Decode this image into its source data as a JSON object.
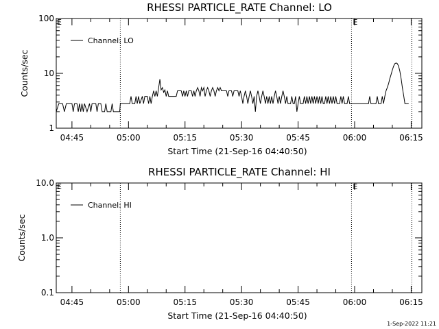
{
  "footer_stamp": "1-Sep-2022 11:21",
  "chart_data": [
    {
      "type": "line",
      "title": "RHESSI PARTICLE_RATE Channel: LO",
      "xlabel": "Start Time (21-Sep-16 04:40:50)",
      "ylabel": "Counts/sec",
      "yscale": "log",
      "ylim": [
        1,
        100
      ],
      "yticks": [
        {
          "v": 1,
          "label": "1"
        },
        {
          "v": 10,
          "label": "10"
        },
        {
          "v": 100,
          "label": "100"
        }
      ],
      "xlim": [
        "04:40:50",
        "06:17:50"
      ],
      "xticks": [
        "04:45",
        "05:00",
        "05:15",
        "05:30",
        "05:45",
        "06:00",
        "06:15"
      ],
      "legend": {
        "entries": [
          "Channel: LO"
        ],
        "placement": "top-left"
      },
      "event_lines": [
        {
          "time": "04:57:50",
          "label": ""
        },
        {
          "time": "05:59:10",
          "label": "E"
        },
        {
          "time": "06:15:10",
          "label": ""
        }
      ],
      "start_marker": "E",
      "grid": false,
      "series": [
        {
          "name": "Channel: LO",
          "color": "#000000",
          "points": [
            [
              "04:40:50",
              2.0
            ],
            [
              "04:41:30",
              2.8
            ],
            [
              "04:42:30",
              2.8
            ],
            [
              "04:43:00",
              2.0
            ],
            [
              "04:43:30",
              2.8
            ],
            [
              "04:45:00",
              2.8
            ],
            [
              "04:45:20",
              2.0
            ],
            [
              "04:45:40",
              2.8
            ],
            [
              "04:46:20",
              2.8
            ],
            [
              "04:46:40",
              2.0
            ],
            [
              "04:47:00",
              2.8
            ],
            [
              "04:47:20",
              2.0
            ],
            [
              "04:47:40",
              2.8
            ],
            [
              "04:48:00",
              2.0
            ],
            [
              "04:48:20",
              2.8
            ],
            [
              "04:49:00",
              2.0
            ],
            [
              "04:49:40",
              2.8
            ],
            [
              "04:50:00",
              2.0
            ],
            [
              "04:50:20",
              2.8
            ],
            [
              "04:51:20",
              2.8
            ],
            [
              "04:51:40",
              2.0
            ],
            [
              "04:52:00",
              2.8
            ],
            [
              "04:52:40",
              2.8
            ],
            [
              "04:53:00",
              2.0
            ],
            [
              "04:53:40",
              2.0
            ],
            [
              "04:54:00",
              2.8
            ],
            [
              "04:54:20",
              2.0
            ],
            [
              "04:55:20",
              2.0
            ],
            [
              "04:55:40",
              2.8
            ],
            [
              "04:56:00",
              2.0
            ],
            [
              "04:57:40",
              2.0
            ],
            [
              "04:57:50",
              2.8
            ],
            [
              "05:00:20",
              2.8
            ],
            [
              "05:00:40",
              3.8
            ],
            [
              "05:01:00",
              2.8
            ],
            [
              "05:01:40",
              2.8
            ],
            [
              "05:02:00",
              3.8
            ],
            [
              "05:02:20",
              2.8
            ],
            [
              "05:02:40",
              3.8
            ],
            [
              "05:03:00",
              2.8
            ],
            [
              "05:03:40",
              3.8
            ],
            [
              "05:04:00",
              2.8
            ],
            [
              "05:04:20",
              3.8
            ],
            [
              "05:05:00",
              3.8
            ],
            [
              "05:05:20",
              2.8
            ],
            [
              "05:05:40",
              3.8
            ],
            [
              "05:06:00",
              2.8
            ],
            [
              "05:06:20",
              3.8
            ],
            [
              "05:06:40",
              4.8
            ],
            [
              "05:07:00",
              3.8
            ],
            [
              "05:07:20",
              4.8
            ],
            [
              "05:07:40",
              3.8
            ],
            [
              "05:08:00",
              5.5
            ],
            [
              "05:08:20",
              7.8
            ],
            [
              "05:08:40",
              5.0
            ],
            [
              "05:09:00",
              5.5
            ],
            [
              "05:09:20",
              4.5
            ],
            [
              "05:09:40",
              5.0
            ],
            [
              "05:10:00",
              3.8
            ],
            [
              "05:10:20",
              4.8
            ],
            [
              "05:10:40",
              3.8
            ],
            [
              "05:12:40",
              3.8
            ],
            [
              "05:13:00",
              4.8
            ],
            [
              "05:14:00",
              4.8
            ],
            [
              "05:14:20",
              3.8
            ],
            [
              "05:14:40",
              4.8
            ],
            [
              "05:15:00",
              3.8
            ],
            [
              "05:15:20",
              4.8
            ],
            [
              "05:15:40",
              3.8
            ],
            [
              "05:16:00",
              4.8
            ],
            [
              "05:16:40",
              4.8
            ],
            [
              "05:17:00",
              3.8
            ],
            [
              "05:17:20",
              4.8
            ],
            [
              "05:17:40",
              3.8
            ],
            [
              "05:18:00",
              4.8
            ],
            [
              "05:18:20",
              5.5
            ],
            [
              "05:18:40",
              4.8
            ],
            [
              "05:19:00",
              3.8
            ],
            [
              "05:19:20",
              5.5
            ],
            [
              "05:19:40",
              4.8
            ],
            [
              "05:20:00",
              5.5
            ],
            [
              "05:20:20",
              3.8
            ],
            [
              "05:20:40",
              4.8
            ],
            [
              "05:21:00",
              5.5
            ],
            [
              "05:21:20",
              4.8
            ],
            [
              "05:21:40",
              3.8
            ],
            [
              "05:22:00",
              4.8
            ],
            [
              "05:22:20",
              5.5
            ],
            [
              "05:22:40",
              4.8
            ],
            [
              "05:23:00",
              3.8
            ],
            [
              "05:23:20",
              4.8
            ],
            [
              "05:23:40",
              5.5
            ],
            [
              "05:24:00",
              4.8
            ],
            [
              "05:24:20",
              5.5
            ],
            [
              "05:24:40",
              4.8
            ],
            [
              "05:26:00",
              4.8
            ],
            [
              "05:26:20",
              3.8
            ],
            [
              "05:26:40",
              4.8
            ],
            [
              "05:27:20",
              4.8
            ],
            [
              "05:27:40",
              3.8
            ],
            [
              "05:28:00",
              4.8
            ],
            [
              "05:29:00",
              4.8
            ],
            [
              "05:29:20",
              3.8
            ],
            [
              "05:29:40",
              4.8
            ],
            [
              "05:30:00",
              3.8
            ],
            [
              "05:30:20",
              2.8
            ],
            [
              "05:30:40",
              3.8
            ],
            [
              "05:31:00",
              4.8
            ],
            [
              "05:31:20",
              3.8
            ],
            [
              "05:31:40",
              2.8
            ],
            [
              "05:32:00",
              3.8
            ],
            [
              "05:32:20",
              4.8
            ],
            [
              "05:32:40",
              3.8
            ],
            [
              "05:33:00",
              2.8
            ],
            [
              "05:33:20",
              3.8
            ],
            [
              "05:33:40",
              2.0
            ],
            [
              "05:34:00",
              3.8
            ],
            [
              "05:34:20",
              4.8
            ],
            [
              "05:34:40",
              3.8
            ],
            [
              "05:35:00",
              2.8
            ],
            [
              "05:35:20",
              3.8
            ],
            [
              "05:35:40",
              4.8
            ],
            [
              "05:36:00",
              3.8
            ],
            [
              "05:36:20",
              2.8
            ],
            [
              "05:36:40",
              3.8
            ],
            [
              "05:37:00",
              2.8
            ],
            [
              "05:37:20",
              3.8
            ],
            [
              "05:37:40",
              2.8
            ],
            [
              "05:38:00",
              3.8
            ],
            [
              "05:38:20",
              2.8
            ],
            [
              "05:38:40",
              3.8
            ],
            [
              "05:39:00",
              4.8
            ],
            [
              "05:39:20",
              3.8
            ],
            [
              "05:39:40",
              2.8
            ],
            [
              "05:40:00",
              3.8
            ],
            [
              "05:40:20",
              2.8
            ],
            [
              "05:40:40",
              3.8
            ],
            [
              "05:41:00",
              4.8
            ],
            [
              "05:41:20",
              3.8
            ],
            [
              "05:41:40",
              2.8
            ],
            [
              "05:42:00",
              3.8
            ],
            [
              "05:42:20",
              2.8
            ],
            [
              "05:43:00",
              2.8
            ],
            [
              "05:43:20",
              3.8
            ],
            [
              "05:43:40",
              2.8
            ],
            [
              "05:44:00",
              2.8
            ],
            [
              "05:44:20",
              3.8
            ],
            [
              "05:44:40",
              2.0
            ],
            [
              "05:45:00",
              2.8
            ],
            [
              "05:45:20",
              3.8
            ],
            [
              "05:45:40",
              2.8
            ],
            [
              "05:46:20",
              2.8
            ],
            [
              "05:46:40",
              3.8
            ],
            [
              "05:47:00",
              2.8
            ],
            [
              "05:47:20",
              3.8
            ],
            [
              "05:47:40",
              2.8
            ],
            [
              "05:48:00",
              3.8
            ],
            [
              "05:48:20",
              2.8
            ],
            [
              "05:48:40",
              3.8
            ],
            [
              "05:49:00",
              2.8
            ],
            [
              "05:49:20",
              3.8
            ],
            [
              "05:49:40",
              2.8
            ],
            [
              "05:50:00",
              3.8
            ],
            [
              "05:50:20",
              2.8
            ],
            [
              "05:50:40",
              3.8
            ],
            [
              "05:51:00",
              2.8
            ],
            [
              "05:51:20",
              3.8
            ],
            [
              "05:51:40",
              2.8
            ],
            [
              "05:52:00",
              2.8
            ],
            [
              "05:52:20",
              3.8
            ],
            [
              "05:52:40",
              2.8
            ],
            [
              "05:53:00",
              3.8
            ],
            [
              "05:53:20",
              2.8
            ],
            [
              "05:53:40",
              3.8
            ],
            [
              "05:54:00",
              2.8
            ],
            [
              "05:54:20",
              3.8
            ],
            [
              "05:54:40",
              2.8
            ],
            [
              "05:55:00",
              3.8
            ],
            [
              "05:55:20",
              2.8
            ],
            [
              "05:56:00",
              2.8
            ],
            [
              "05:56:20",
              3.8
            ],
            [
              "05:56:40",
              2.8
            ],
            [
              "05:57:00",
              3.8
            ],
            [
              "05:57:20",
              2.8
            ],
            [
              "05:58:00",
              2.8
            ],
            [
              "05:58:20",
              3.8
            ],
            [
              "05:58:40",
              2.8
            ],
            [
              "06:03:40",
              2.8
            ],
            [
              "06:04:00",
              3.8
            ],
            [
              "06:04:20",
              2.8
            ],
            [
              "06:05:40",
              2.8
            ],
            [
              "06:06:00",
              3.8
            ],
            [
              "06:06:20",
              2.8
            ],
            [
              "06:07:00",
              2.8
            ],
            [
              "06:07:20",
              3.8
            ],
            [
              "06:07:40",
              2.8
            ],
            [
              "06:08:00",
              3.8
            ],
            [
              "06:08:20",
              4.8
            ],
            [
              "06:08:40",
              5.5
            ],
            [
              "06:09:00",
              6.5
            ],
            [
              "06:09:20",
              8.0
            ],
            [
              "06:09:40",
              9.5
            ],
            [
              "06:10:00",
              11.5
            ],
            [
              "06:10:20",
              13.5
            ],
            [
              "06:10:40",
              15.0
            ],
            [
              "06:11:00",
              15.5
            ],
            [
              "06:11:20",
              15.0
            ],
            [
              "06:11:40",
              13.5
            ],
            [
              "06:12:00",
              11.0
            ],
            [
              "06:12:20",
              8.0
            ],
            [
              "06:12:40",
              5.5
            ],
            [
              "06:13:00",
              4.0
            ],
            [
              "06:13:20",
              2.8
            ],
            [
              "06:14:20",
              2.8
            ]
          ]
        }
      ]
    },
    {
      "type": "line",
      "title": "RHESSI PARTICLE_RATE Channel: HI",
      "xlabel": "Start Time (21-Sep-16 04:40:50)",
      "ylabel": "Counts/sec",
      "yscale": "log",
      "ylim": [
        0.1,
        10
      ],
      "yticks": [
        {
          "v": 0.1,
          "label": "0.1"
        },
        {
          "v": 1,
          "label": "1.0"
        },
        {
          "v": 10,
          "label": "10.0"
        }
      ],
      "xlim": [
        "04:40:50",
        "06:17:50"
      ],
      "xticks": [
        "04:45",
        "05:00",
        "05:15",
        "05:30",
        "05:45",
        "06:00",
        "06:15"
      ],
      "legend": {
        "entries": [
          "Channel: HI"
        ],
        "placement": "top-left"
      },
      "event_lines": [
        {
          "time": "04:57:50",
          "label": ""
        },
        {
          "time": "05:59:10",
          "label": "E"
        },
        {
          "time": "06:15:10",
          "label": ""
        }
      ],
      "start_marker": "E",
      "grid": false,
      "series": [
        {
          "name": "Channel: HI",
          "color": "#000000",
          "points": []
        }
      ]
    }
  ]
}
